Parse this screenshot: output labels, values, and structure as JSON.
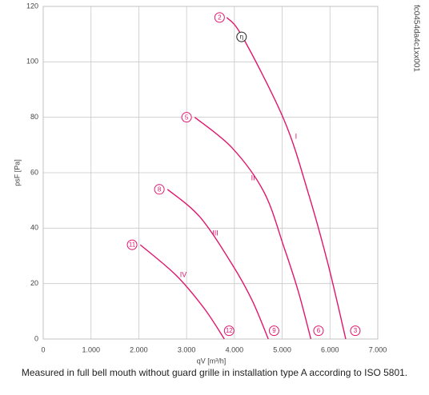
{
  "chart_data": {
    "type": "line",
    "xlabel": "qV [m³/h]",
    "ylabel": "psF [Pa]",
    "side_note": "fc0454da4c1xx001",
    "caption": "Measured in full bell mouth without guard grille in installation type A according to ISO 5801.",
    "xlim": [
      0,
      7000
    ],
    "ylim": [
      0,
      120
    ],
    "xticks": [
      0,
      {
        "value": 1000,
        "label": "1.000"
      },
      {
        "value": 2000,
        "label": "2.000"
      },
      {
        "value": 3000,
        "label": "3.000"
      },
      {
        "value": 4000,
        "label": "4.000"
      },
      {
        "value": 5000,
        "label": "5.000"
      },
      {
        "value": 6000,
        "label": "6.000"
      },
      {
        "value": 7000,
        "label": "7.000"
      }
    ],
    "yticks": [
      0,
      20,
      40,
      60,
      80,
      100,
      120
    ],
    "grid": true,
    "series": [
      {
        "name": "I",
        "color": "#e0166e",
        "label_pos": [
          5290,
          73
        ],
        "x": [
          3840,
          4170,
          5040,
          5540,
          5960,
          6330
        ],
        "values": [
          116,
          109,
          79,
          53,
          27,
          0
        ]
      },
      {
        "name": "II",
        "color": "#e0166e",
        "label_pos": [
          4390,
          58
        ],
        "x": [
          3170,
          3950,
          4620,
          5040,
          5340,
          5600
        ],
        "values": [
          80,
          69,
          53,
          33,
          17,
          0
        ]
      },
      {
        "name": "III",
        "color": "#e0166e",
        "label_pos": [
          3600,
          38
        ],
        "x": [
          2600,
          3280,
          3950,
          4370,
          4710
        ],
        "values": [
          54,
          44,
          27,
          14,
          0
        ]
      },
      {
        "name": "IV",
        "color": "#e0166e",
        "label_pos": [
          2930,
          23
        ],
        "x": [
          2030,
          2780,
          3370,
          3790
        ],
        "values": [
          34,
          23,
          11,
          0
        ]
      }
    ],
    "markers": [
      {
        "label": "2",
        "x": 3690,
        "y": 116,
        "color": "#e0166e"
      },
      {
        "label": "η",
        "x": 4150,
        "y": 109,
        "color": "#222222"
      },
      {
        "label": "3",
        "x": 6530,
        "y": 3,
        "color": "#e0166e"
      },
      {
        "label": "5",
        "x": 3000,
        "y": 80,
        "color": "#e0166e"
      },
      {
        "label": "6",
        "x": 5760,
        "y": 3,
        "color": "#e0166e"
      },
      {
        "label": "8",
        "x": 2430,
        "y": 54,
        "color": "#e0166e"
      },
      {
        "label": "9",
        "x": 4830,
        "y": 3,
        "color": "#e0166e"
      },
      {
        "label": "11",
        "x": 1860,
        "y": 34,
        "color": "#e0166e"
      },
      {
        "label": "12",
        "x": 3890,
        "y": 3,
        "color": "#e0166e"
      }
    ]
  }
}
